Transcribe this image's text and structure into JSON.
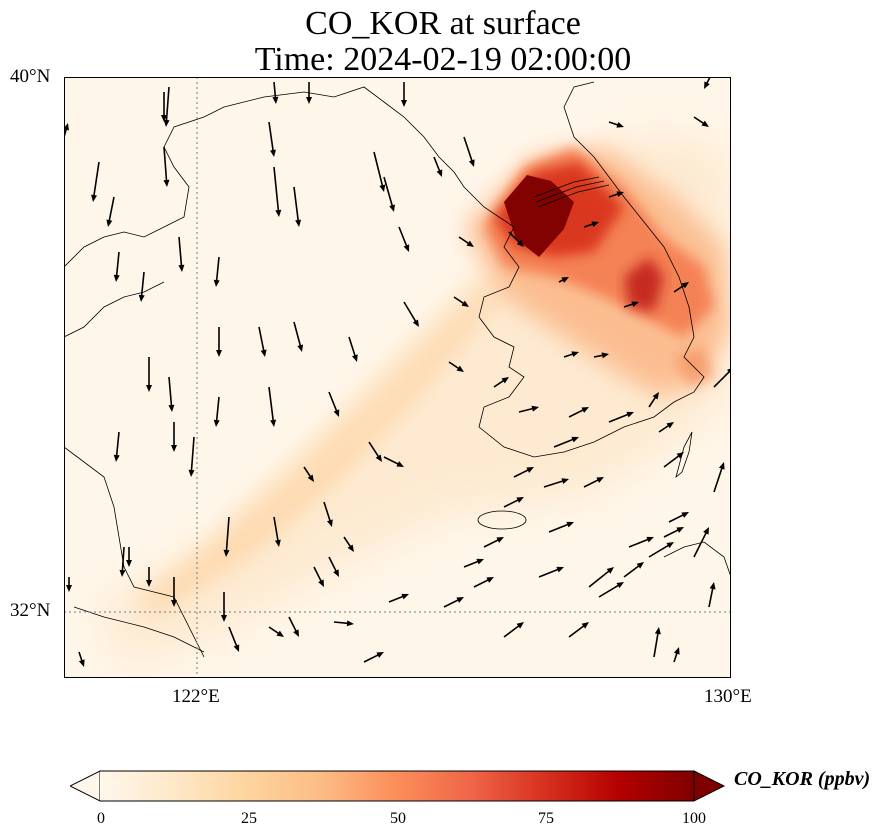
{
  "title": {
    "line1": "CO_KOR at surface",
    "line2": "Time: 2024-02-19 02:00:00"
  },
  "axes": {
    "lat_labels": [
      "40°N",
      "32°N"
    ],
    "lon_labels": [
      "122°E",
      "130°E"
    ]
  },
  "colorbar": {
    "label": "CO_KOR (ppbv)",
    "ticks": [
      "0",
      "25",
      "50",
      "75",
      "100"
    ],
    "colormap": "OrRd",
    "colors": [
      "#fff7ec",
      "#fee8c8",
      "#fdd49e",
      "#fdbb84",
      "#fc8d59",
      "#ef6548",
      "#d7301f",
      "#b30000",
      "#7f0000"
    ],
    "extend": "both"
  },
  "map": {
    "lon_range": [
      120,
      130
    ],
    "lat_range": [
      31,
      40
    ],
    "gridlines": "dotted at 122°E and 32°N",
    "field": "surface CO_KOR concentration with wind vectors",
    "peak_region": "Seoul metropolitan area (>100 ppbv)",
    "secondary_peak": "Yeongnam / Daegu region",
    "plume": "diffuse band extending southwest toward eastern China coast"
  }
}
